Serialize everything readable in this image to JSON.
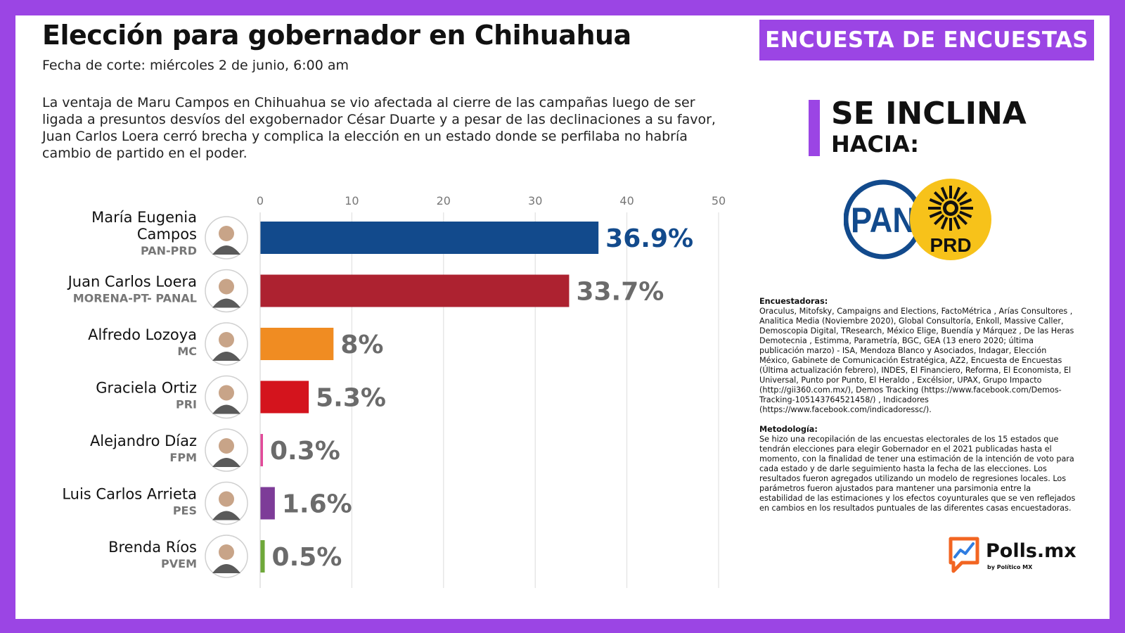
{
  "header": {
    "title": "Elección para gobernador en Chihuahua",
    "subtitle": "Fecha de corte: miércoles 2 de junio, 6:00 am",
    "description": "La ventaja de Maru Campos en Chihuahua se vio afectada al cierre de las campañas luego de ser ligada a presuntos desvíos del exgobernador César Duarte y a pesar de las declinaciones a su favor, Juan Carlos Loera cerró brecha y complica la elección en un estado donde se perfilaba no habría cambio de partido en el poder."
  },
  "banner": "ENCUESTA DE ENCUESTAS",
  "lean": {
    "line1": "SE INCLINA",
    "line2": "HACIA:"
  },
  "party_logos": {
    "pan": "PAN",
    "prd": "PRD"
  },
  "notes": {
    "pollsters_heading": "Encuestadoras:",
    "pollsters_text": "Oraculus, Mitofsky, Campaigns and Elections, FactoMétrica , Arías Consultores , Analitica Media (Noviembre 2020), Global Consultoría, Enkoll, Massive Caller, Demoscopia Digital, TResearch, México Elige, Buendía y Márquez , De las Heras Demotecnia , Estimma, Parametría, BGC, GEA (13 enero 2020; última publicación marzo) - ISA, Mendoza Blanco y Asociados, Indagar, Elección México, Gabinete de Comunicación Estratégica, AZ2, Encuesta de Encuestas (Última actualización febrero), INDES, El Financiero, Reforma, El Economista, El Universal, Punto por Punto, El Heraldo , Excélsior, UPAX, Grupo Impacto (http://gii360.com.mx/), Demos Tracking (https://www.facebook.com/Demos-Tracking-105143764521458/) , Indicadores (https://www.facebook.com/indicadoressc/).",
    "method_heading": "Metodología:",
    "method_text": "Se hizo una recopilación de las encuestas electorales de los 15 estados que tendrán elecciones para elegir Gobernador en el 2021 publicadas hasta el momento, con la finalidad de tener una estimación de la intención de voto para cada estado y de darle seguimiento hasta la fecha de las elecciones. Los resultados fueron agregados utilizando un modelo de regresiones locales. Los parámetros fueron ajustados para mantener una parsimonia entre la estabilidad de las estimaciones y los efectos coyunturales que se ven reflejados en cambios en los resultados puntuales de las diferentes casas encuestadoras."
  },
  "brand": {
    "name": "Polls.mx",
    "byline": "by Político MX"
  },
  "colors": {
    "frame": "#9b45e4",
    "leader_label": "#124a8c",
    "label_gray": "#6b6b6b"
  },
  "chart_data": {
    "type": "bar",
    "orientation": "horizontal",
    "xlim": [
      0,
      50
    ],
    "ticks": [
      0,
      10,
      20,
      30,
      40,
      50
    ],
    "grid": true,
    "categories": [
      "María Eugenia Campos",
      "Juan Carlos Loera",
      "Alfredo Lozoya",
      "Graciela Ortiz",
      "Alejandro Díaz",
      "Luis Carlos Arrieta",
      "Brenda Ríos"
    ],
    "parties": [
      "PAN-PRD",
      "MORENA-PT- PANAL",
      "MC",
      "PRI",
      "FPM",
      "PES",
      "PVEM"
    ],
    "values": [
      36.9,
      33.7,
      8,
      5.3,
      0.3,
      1.6,
      0.5
    ],
    "value_labels": [
      "36.9%",
      "33.7%",
      "8%",
      "5.3%",
      "0.3%",
      "1.6%",
      "0.5%"
    ],
    "colors": [
      "#124a8c",
      "#ad2230",
      "#f08c22",
      "#d4141d",
      "#e24a9a",
      "#7d3c98",
      "#6fa83a"
    ]
  }
}
